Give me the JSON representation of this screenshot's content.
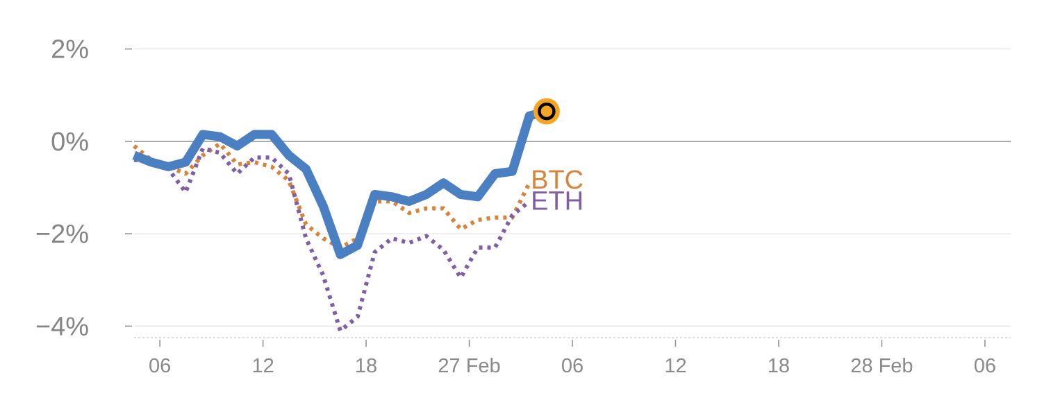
{
  "chart_data": {
    "type": "line",
    "title": "",
    "xlabel": "",
    "ylabel": "",
    "ylim": [
      -4.25,
      2.4
    ],
    "yticks": [
      {
        "value": 2,
        "label": "2%"
      },
      {
        "value": 0,
        "label": "0%"
      },
      {
        "value": -2,
        "label": "−2%"
      },
      {
        "value": -4,
        "label": "−4%"
      }
    ],
    "xticks": [
      {
        "value": 1.5,
        "label": "06"
      },
      {
        "value": 7.5,
        "label": "12"
      },
      {
        "value": 13.5,
        "label": "18"
      },
      {
        "value": 19.5,
        "label": "27 Feb"
      },
      {
        "value": 25.5,
        "label": "06"
      },
      {
        "value": 31.5,
        "label": "12"
      },
      {
        "value": 37.5,
        "label": "18"
      },
      {
        "value": 43.5,
        "label": "28 Feb"
      },
      {
        "value": 49.5,
        "label": "06"
      }
    ],
    "xlim": [
      0,
      51
    ],
    "grid": true,
    "series": [
      {
        "name": "",
        "style": "solid",
        "color": "#4a7fc1",
        "x": [
          0,
          1,
          2,
          3,
          4,
          5,
          6,
          7,
          8,
          9,
          10,
          11,
          12,
          13,
          14,
          15,
          16,
          17,
          18,
          19,
          20,
          21,
          22,
          23,
          24
        ],
        "values": [
          -0.3,
          -0.45,
          -0.55,
          -0.45,
          0.15,
          0.1,
          -0.1,
          0.15,
          0.15,
          -0.3,
          -0.6,
          -1.4,
          -2.45,
          -2.25,
          -1.15,
          -1.2,
          -1.3,
          -1.15,
          -0.9,
          -1.15,
          -1.2,
          -0.7,
          -0.65,
          0.55,
          0.65
        ]
      },
      {
        "name": "BTC",
        "style": "dotted",
        "color": "#d9833a",
        "x": [
          0,
          1,
          2,
          3,
          4,
          5,
          6,
          7,
          8,
          9,
          10,
          11,
          12,
          13,
          14,
          15,
          16,
          17,
          18,
          19,
          20,
          21,
          22,
          23
        ],
        "values": [
          -0.1,
          -0.4,
          -0.55,
          -0.7,
          -0.3,
          -0.05,
          -0.5,
          -0.45,
          -0.55,
          -0.85,
          -1.8,
          -2.1,
          -2.3,
          -2.1,
          -1.3,
          -1.3,
          -1.55,
          -1.45,
          -1.45,
          -1.9,
          -1.7,
          -1.65,
          -1.65,
          -0.9
        ]
      },
      {
        "name": "ETH",
        "style": "dotted",
        "color": "#7e5fa6",
        "x": [
          0,
          1,
          2,
          3,
          4,
          5,
          6,
          7,
          8,
          9,
          10,
          11,
          12,
          13,
          14,
          15,
          16,
          17,
          18,
          19,
          20,
          21,
          22,
          23
        ],
        "values": [
          -0.4,
          -0.45,
          -0.6,
          -1.1,
          -0.15,
          -0.25,
          -0.7,
          -0.35,
          -0.35,
          -0.7,
          -2.1,
          -2.9,
          -4.1,
          -3.8,
          -2.4,
          -2.1,
          -2.2,
          -2.05,
          -2.35,
          -2.95,
          -2.3,
          -2.3,
          -1.6,
          -1.3
        ]
      }
    ],
    "last_point": {
      "x": 24,
      "value": 0.65,
      "color": "#f5a623"
    }
  }
}
